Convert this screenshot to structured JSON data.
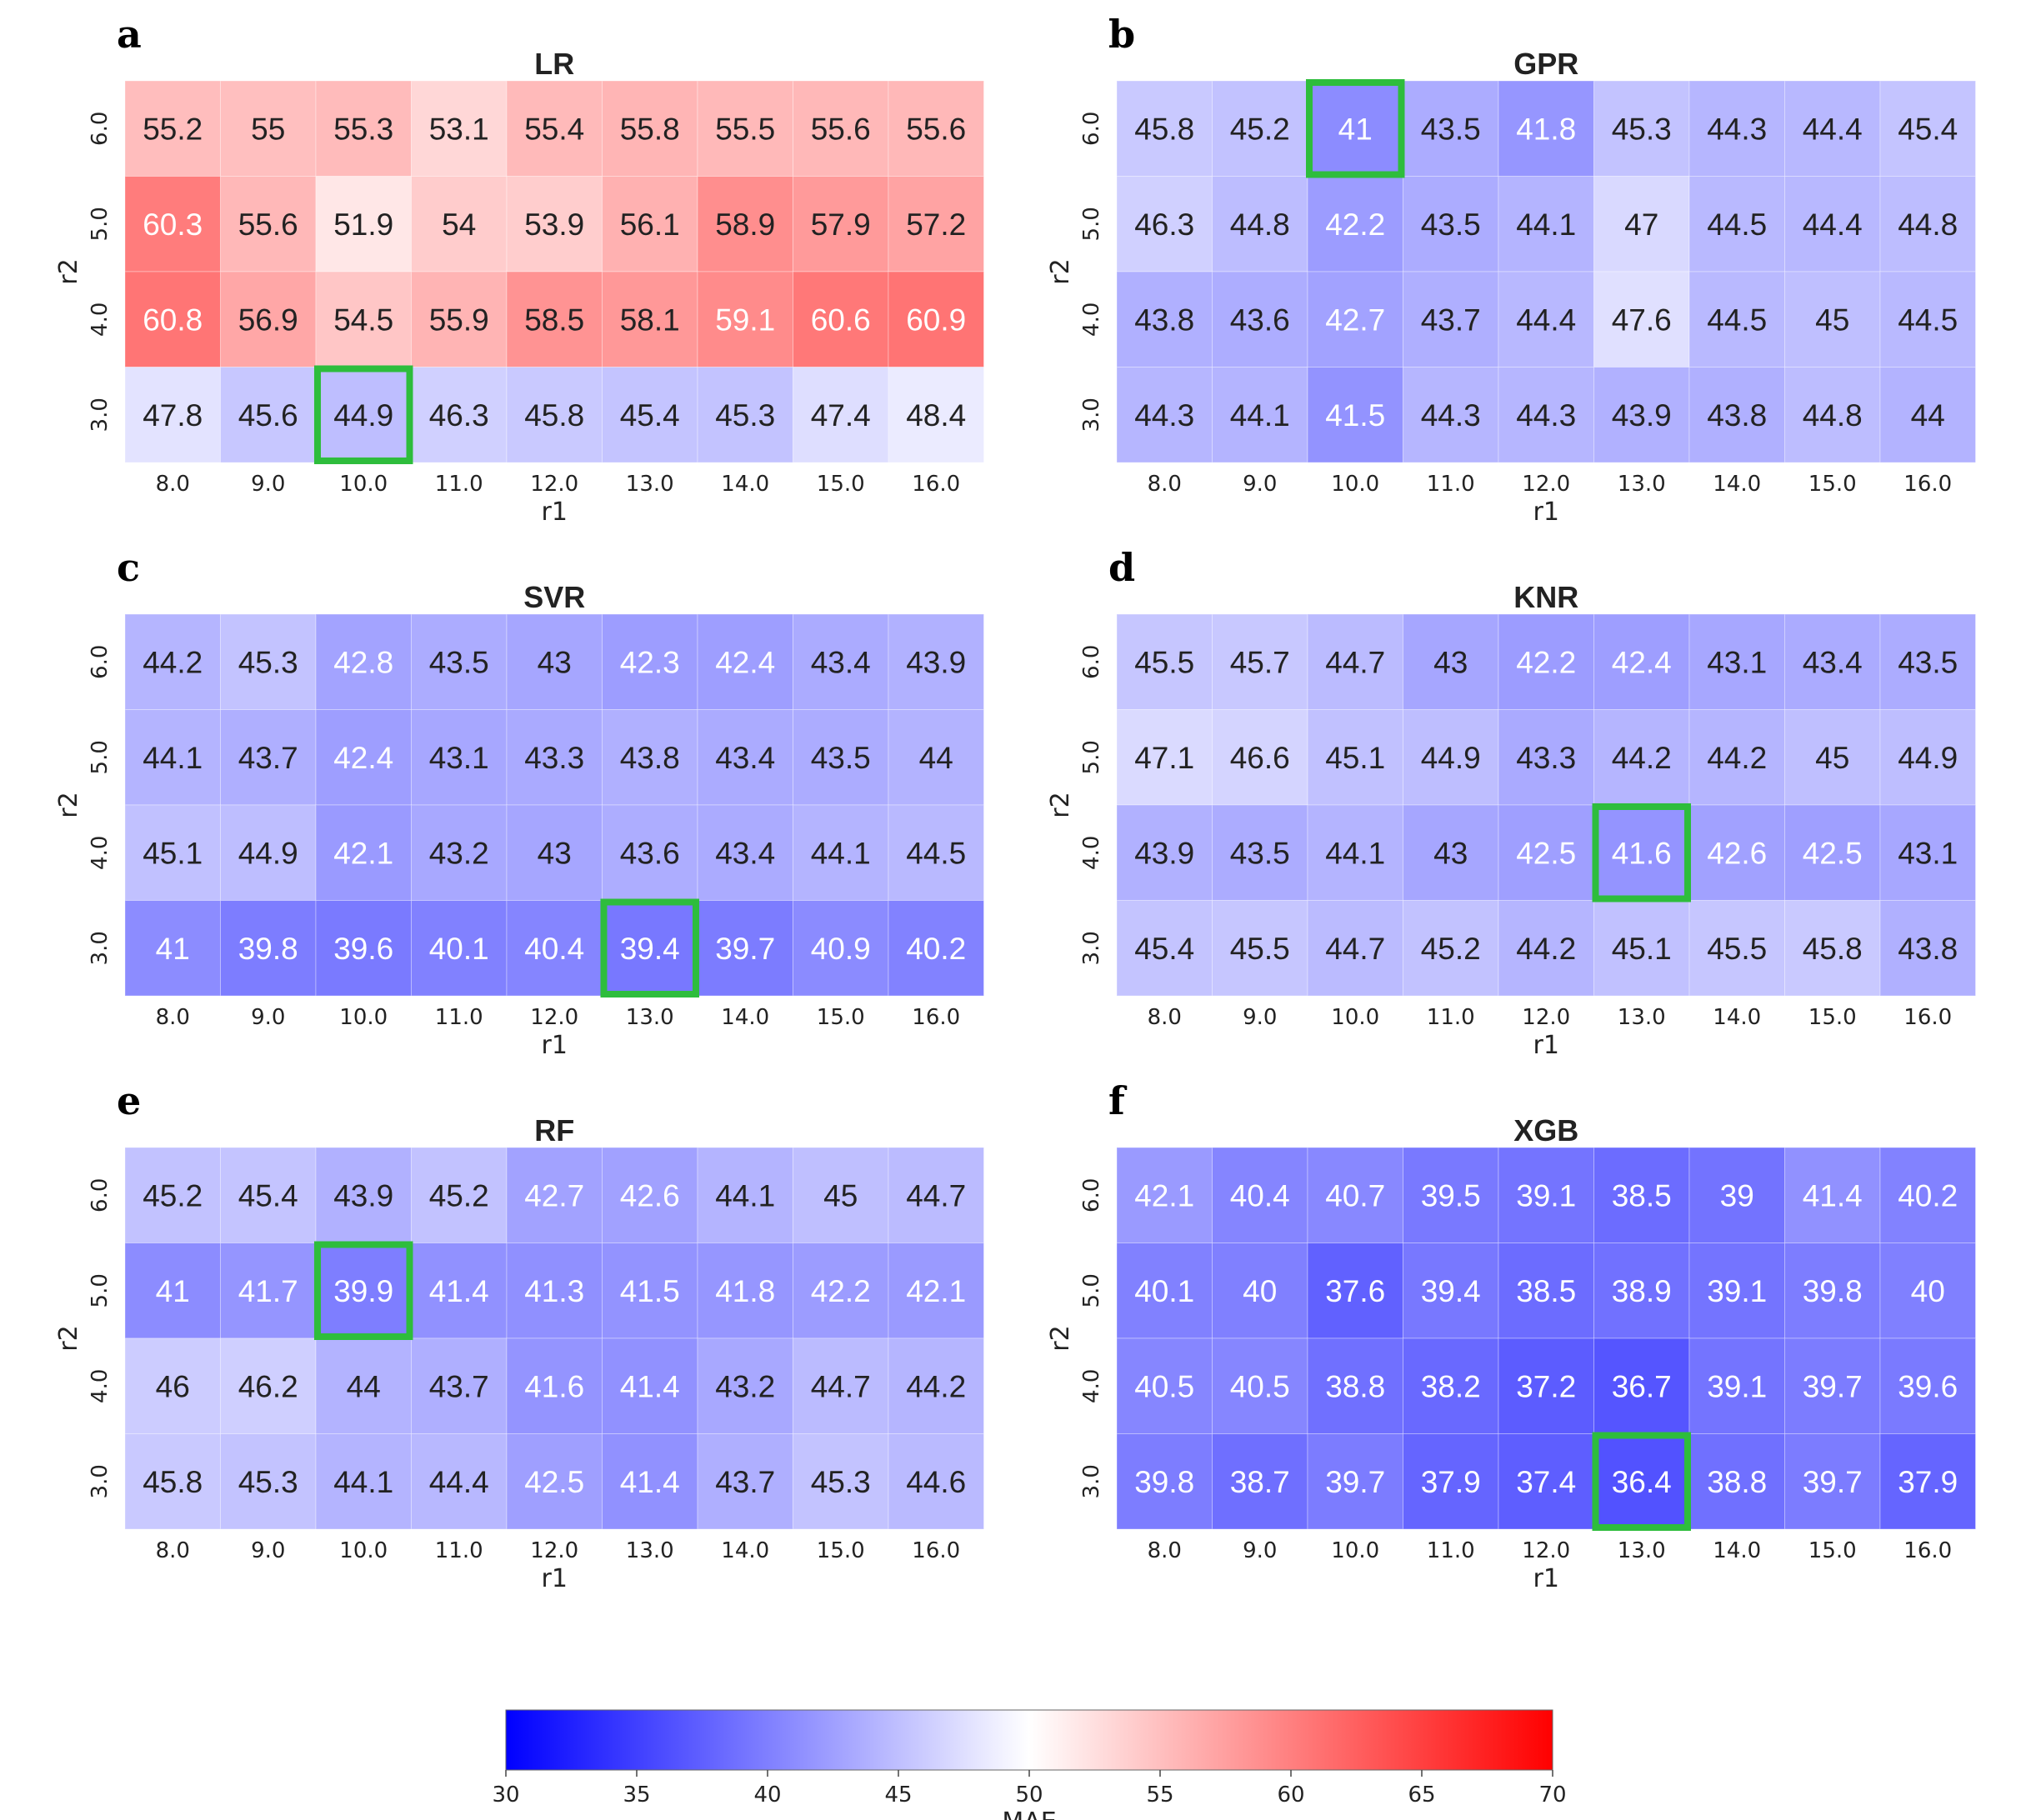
{
  "chart_data": [
    {
      "type": "heatmap",
      "panel": "a",
      "title": "LR",
      "xlabel": "r1",
      "ylabel": "r2",
      "x": [
        "8.0",
        "9.0",
        "10.0",
        "11.0",
        "12.0",
        "13.0",
        "14.0",
        "15.0",
        "16.0"
      ],
      "y": [
        "6.0",
        "5.0",
        "4.0",
        "3.0"
      ],
      "values": [
        [
          55.2,
          55,
          55.3,
          53.1,
          55.4,
          55.8,
          55.5,
          55.6,
          55.6
        ],
        [
          60.3,
          55.6,
          51.9,
          54,
          53.9,
          56.1,
          58.9,
          57.9,
          57.2
        ],
        [
          60.8,
          56.9,
          54.5,
          55.9,
          58.5,
          58.1,
          59.1,
          60.6,
          60.9
        ],
        [
          47.8,
          45.6,
          44.9,
          46.3,
          45.8,
          45.4,
          45.3,
          47.4,
          48.4
        ]
      ],
      "highlight": {
        "row": 3,
        "col": 2
      }
    },
    {
      "type": "heatmap",
      "panel": "b",
      "title": "GPR",
      "xlabel": "r1",
      "ylabel": "r2",
      "x": [
        "8.0",
        "9.0",
        "10.0",
        "11.0",
        "12.0",
        "13.0",
        "14.0",
        "15.0",
        "16.0"
      ],
      "y": [
        "6.0",
        "5.0",
        "4.0",
        "3.0"
      ],
      "values": [
        [
          45.8,
          45.2,
          41,
          43.5,
          41.8,
          45.3,
          44.3,
          44.4,
          45.4
        ],
        [
          46.3,
          44.8,
          42.2,
          43.5,
          44.1,
          47,
          44.5,
          44.4,
          44.8
        ],
        [
          43.8,
          43.6,
          42.7,
          43.7,
          44.4,
          47.6,
          44.5,
          45,
          44.5
        ],
        [
          44.3,
          44.1,
          41.5,
          44.3,
          44.3,
          43.9,
          43.8,
          44.8,
          44
        ]
      ],
      "highlight": {
        "row": 0,
        "col": 2
      }
    },
    {
      "type": "heatmap",
      "panel": "c",
      "title": "SVR",
      "xlabel": "r1",
      "ylabel": "r2",
      "x": [
        "8.0",
        "9.0",
        "10.0",
        "11.0",
        "12.0",
        "13.0",
        "14.0",
        "15.0",
        "16.0"
      ],
      "y": [
        "6.0",
        "5.0",
        "4.0",
        "3.0"
      ],
      "values": [
        [
          44.2,
          45.3,
          42.8,
          43.5,
          43,
          42.3,
          42.4,
          43.4,
          43.9
        ],
        [
          44.1,
          43.7,
          42.4,
          43.1,
          43.3,
          43.8,
          43.4,
          43.5,
          44
        ],
        [
          45.1,
          44.9,
          42.1,
          43.2,
          43,
          43.6,
          43.4,
          44.1,
          44.5
        ],
        [
          41,
          39.8,
          39.6,
          40.1,
          40.4,
          39.4,
          39.7,
          40.9,
          40.2
        ]
      ],
      "highlight": {
        "row": 3,
        "col": 5
      }
    },
    {
      "type": "heatmap",
      "panel": "d",
      "title": "KNR",
      "xlabel": "r1",
      "ylabel": "r2",
      "x": [
        "8.0",
        "9.0",
        "10.0",
        "11.0",
        "12.0",
        "13.0",
        "14.0",
        "15.0",
        "16.0"
      ],
      "y": [
        "6.0",
        "5.0",
        "4.0",
        "3.0"
      ],
      "values": [
        [
          45.5,
          45.7,
          44.7,
          43,
          42.2,
          42.4,
          43.1,
          43.4,
          43.5
        ],
        [
          47.1,
          46.6,
          45.1,
          44.9,
          43.3,
          44.2,
          44.2,
          45,
          44.9
        ],
        [
          43.9,
          43.5,
          44.1,
          43,
          42.5,
          41.6,
          42.6,
          42.5,
          43.1
        ],
        [
          45.4,
          45.5,
          44.7,
          45.2,
          44.2,
          45.1,
          45.5,
          45.8,
          43.8
        ]
      ],
      "highlight": {
        "row": 2,
        "col": 5
      }
    },
    {
      "type": "heatmap",
      "panel": "e",
      "title": "RF",
      "xlabel": "r1",
      "ylabel": "r2",
      "x": [
        "8.0",
        "9.0",
        "10.0",
        "11.0",
        "12.0",
        "13.0",
        "14.0",
        "15.0",
        "16.0"
      ],
      "y": [
        "6.0",
        "5.0",
        "4.0",
        "3.0"
      ],
      "values": [
        [
          45.2,
          45.4,
          43.9,
          45.2,
          42.7,
          42.6,
          44.1,
          45,
          44.7
        ],
        [
          41,
          41.7,
          39.9,
          41.4,
          41.3,
          41.5,
          41.8,
          42.2,
          42.1
        ],
        [
          46,
          46.2,
          44,
          43.7,
          41.6,
          41.4,
          43.2,
          44.7,
          44.2
        ],
        [
          45.8,
          45.3,
          44.1,
          44.4,
          42.5,
          41.4,
          43.7,
          45.3,
          44.6
        ]
      ],
      "highlight": {
        "row": 1,
        "col": 2
      }
    },
    {
      "type": "heatmap",
      "panel": "f",
      "title": "XGB",
      "xlabel": "r1",
      "ylabel": "r2",
      "x": [
        "8.0",
        "9.0",
        "10.0",
        "11.0",
        "12.0",
        "13.0",
        "14.0",
        "15.0",
        "16.0"
      ],
      "y": [
        "6.0",
        "5.0",
        "4.0",
        "3.0"
      ],
      "values": [
        [
          42.1,
          40.4,
          40.7,
          39.5,
          39.1,
          38.5,
          39,
          41.4,
          40.2
        ],
        [
          40.1,
          40,
          37.6,
          39.4,
          38.5,
          38.9,
          39.1,
          39.8,
          40
        ],
        [
          40.5,
          40.5,
          38.8,
          38.2,
          37.2,
          36.7,
          39.1,
          39.7,
          39.6
        ],
        [
          39.8,
          38.7,
          39.7,
          37.9,
          37.4,
          36.4,
          38.8,
          39.7,
          37.9
        ]
      ],
      "highlight": {
        "row": 3,
        "col": 5
      }
    }
  ],
  "colorbar": {
    "label": "MAE",
    "min": 30,
    "max": 70,
    "center": 50,
    "ticks": [
      "30",
      "35",
      "40",
      "45",
      "50",
      "55",
      "60",
      "65",
      "70"
    ],
    "colors": {
      "low": "#0000ff",
      "mid": "#ffffff",
      "high": "#ff0000"
    }
  },
  "highlight_color": "#2ebd3c"
}
